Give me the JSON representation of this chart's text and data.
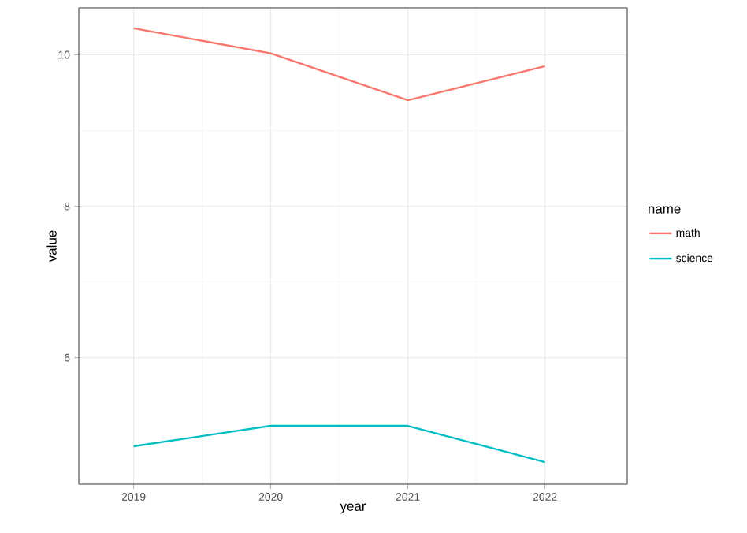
{
  "chart_data": {
    "type": "line",
    "xlabel": "year",
    "ylabel": "value",
    "legend_title": "name",
    "x": [
      2019,
      2020,
      2021,
      2022
    ],
    "series": [
      {
        "name": "math",
        "color": "#f8766d",
        "values": [
          10.35,
          10.02,
          9.4,
          9.85
        ]
      },
      {
        "name": "science",
        "color": "#00bfc4",
        "values": [
          4.83,
          5.1,
          5.1,
          4.62
        ]
      }
    ],
    "xlim": [
      2018.6,
      2022.6
    ],
    "ylim": [
      4.33,
      10.62
    ],
    "xticks": [
      2019,
      2020,
      2021,
      2022
    ],
    "yticks": [
      6,
      8,
      10
    ],
    "grid": true,
    "legend": "right",
    "line_style": "solid",
    "marker": "none"
  }
}
